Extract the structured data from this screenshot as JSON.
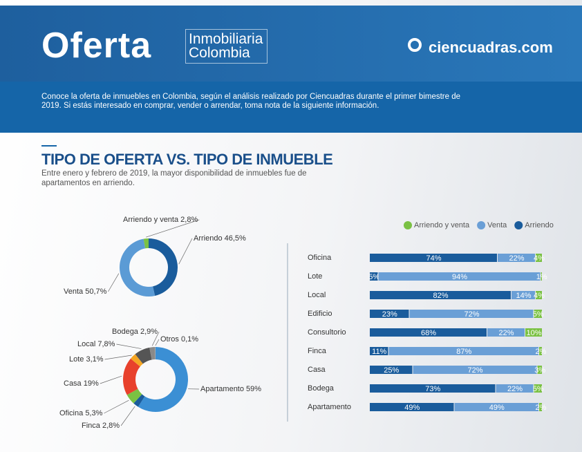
{
  "header": {
    "title": "Oferta",
    "subtitle_line1": "Inmobiliaria",
    "subtitle_line2": "Colombia",
    "brand": "ciencuadras.com"
  },
  "intro": "Conoce la oferta de inmuebles en Colombia, según el análisis realizado por Ciencuadras durante el primer bimestre de 2019. Si estás interesado en comprar, vender o arrendar, toma nota de la siguiente información.",
  "section": {
    "title": "TIPO DE OFERTA VS. TIPO DE INMUEBLE",
    "subtitle": "Entre enero y febrero de 2019, la mayor disponibilidad de inmuebles fue de apartamentos en arriendo."
  },
  "chart_data": [
    {
      "type": "donut",
      "categories": [
        "Arriendo",
        "Venta",
        "Arriendo y venta"
      ],
      "values": [
        46.5,
        50.7,
        2.8
      ],
      "value_labels": [
        "46,5%",
        "50,7%",
        "2,8%"
      ],
      "colors": [
        "#1a5c9c",
        "#5b9bd5",
        "#7ac143"
      ]
    },
    {
      "type": "donut",
      "categories": [
        "Apartamento",
        "Finca",
        "Oficina",
        "Casa",
        "Lote",
        "Local",
        "Bodega",
        "Otros"
      ],
      "values": [
        59,
        2.8,
        5.3,
        19,
        3.1,
        7.8,
        2.9,
        0.1
      ],
      "value_labels": [
        "59%",
        "2,8%",
        "5,3%",
        "19%",
        "3,1%",
        "7,8%",
        "2,9%",
        "0,1%"
      ],
      "colors": [
        "#3b8fd4",
        "#1a5c9c",
        "#7ac143",
        "#e8412c",
        "#f5a623",
        "#555555",
        "#8a8a8a",
        "#cfcfcf"
      ]
    },
    {
      "type": "stacked-barh",
      "categories": [
        "Oficina",
        "Lote",
        "Local",
        "Edificio",
        "Consultorio",
        "Finca",
        "Casa",
        "Bodega",
        "Apartamento"
      ],
      "series": [
        {
          "name": "Arriendo",
          "color": "#1a5c9c",
          "values": [
            74,
            5,
            82,
            23,
            68,
            11,
            25,
            73,
            49
          ],
          "value_labels": [
            "74%",
            "5%",
            "82%",
            "23%",
            "68%",
            "11%",
            "25%",
            "73%",
            "49%"
          ]
        },
        {
          "name": "Venta",
          "color": "#6a9fd6",
          "values": [
            22,
            94,
            14,
            72,
            22,
            87,
            72,
            22,
            49
          ],
          "value_labels": [
            "22%",
            "94%",
            "14%",
            "72%",
            "22%",
            "87%",
            "72%",
            "22%",
            "49%"
          ]
        },
        {
          "name": "Arriendo y venta",
          "color": "#7ac143",
          "values": [
            4,
            1,
            4,
            5,
            10,
            2,
            3,
            5,
            2
          ],
          "value_labels": [
            "4%",
            "1%",
            "4%",
            "5%",
            "10%",
            "2%",
            "3%",
            "5%",
            "2%"
          ]
        }
      ]
    }
  ]
}
